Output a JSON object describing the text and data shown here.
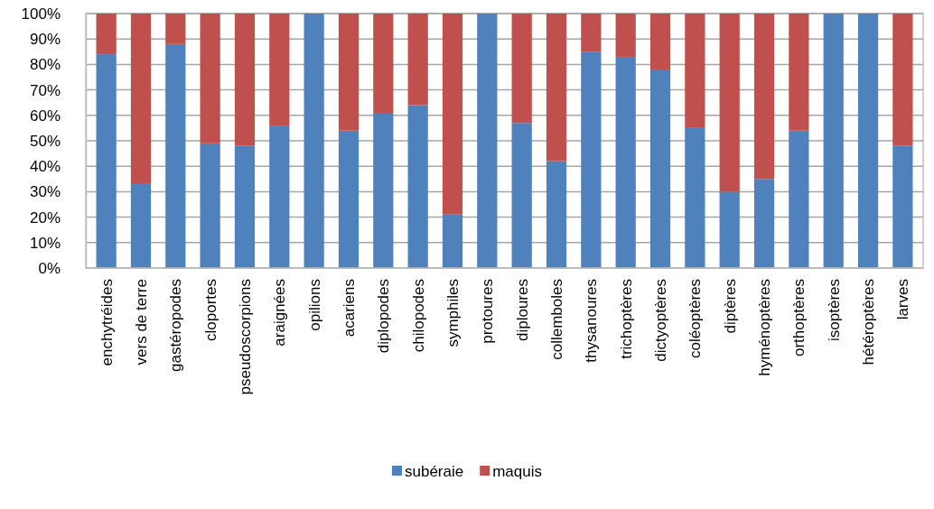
{
  "chart_data": {
    "type": "bar",
    "stacked": true,
    "categories": [
      "enchytréides",
      "vers de terre",
      "gastéropodes",
      "cloportes",
      "pseudoscorpions",
      "araignées",
      "opilions",
      "acariens",
      "diplopodes",
      "chilopodes",
      "symphiles",
      "protoures",
      "diploures",
      "collemboles",
      "thysanoures",
      "trichoptères",
      "dictyoptères",
      "coléoptères",
      "diptères",
      "hyménoptères",
      "orthoptères",
      "isoptères",
      "hétéroptères",
      "larves"
    ],
    "series": [
      {
        "name": "subéraie",
        "color": "#4f81bd",
        "values": [
          84,
          33,
          88,
          49,
          48,
          56,
          100,
          54,
          61,
          64,
          21,
          100,
          57,
          42,
          85,
          83,
          78,
          55,
          30,
          35,
          54,
          100,
          100,
          48
        ]
      },
      {
        "name": "maquis",
        "color": "#c0504d",
        "values": [
          16,
          67,
          12,
          51,
          52,
          44,
          0,
          46,
          39,
          36,
          79,
          0,
          43,
          58,
          15,
          17,
          22,
          45,
          70,
          65,
          46,
          0,
          0,
          52
        ]
      }
    ],
    "ylim": [
      0,
      100
    ],
    "yticks": [
      {
        "value": 0,
        "label": "0%"
      },
      {
        "value": 10,
        "label": "10%"
      },
      {
        "value": 20,
        "label": "20%"
      },
      {
        "value": 30,
        "label": "30%"
      },
      {
        "value": 40,
        "label": "40%"
      },
      {
        "value": 50,
        "label": "50%"
      },
      {
        "value": 60,
        "label": "60%"
      },
      {
        "value": 70,
        "label": "70%"
      },
      {
        "value": 80,
        "label": "80%"
      },
      {
        "value": 90,
        "label": "90%"
      },
      {
        "value": 100,
        "label": "100%"
      }
    ],
    "grid": "y",
    "legend": "bottom"
  }
}
